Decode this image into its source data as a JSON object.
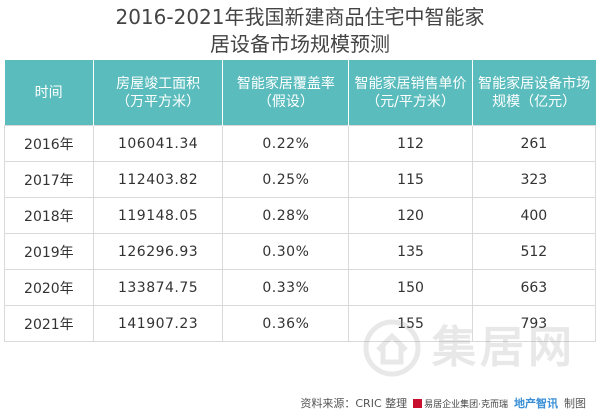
{
  "title": {
    "line1": "2016-2021年我国新建商品住宅中智能家",
    "line2": "居设备市场规模预测"
  },
  "table": {
    "headers": [
      [
        "时间"
      ],
      [
        "房屋竣工面积",
        "（万平方米）"
      ],
      [
        "智能家居覆盖率",
        "（假设）"
      ],
      [
        "智能家居销售单价",
        "（元/平方米）"
      ],
      [
        "智能家居设备市场",
        "规模（亿元）"
      ]
    ],
    "rows": [
      [
        "2016年",
        "106041.34",
        "0.22%",
        "112",
        "261"
      ],
      [
        "2017年",
        "112403.82",
        "0.25%",
        "115",
        "323"
      ],
      [
        "2018年",
        "119148.05",
        "0.28%",
        "120",
        "400"
      ],
      [
        "2019年",
        "126296.93",
        "0.30%",
        "135",
        "512"
      ],
      [
        "2020年",
        "133874.75",
        "0.33%",
        "150",
        "663"
      ],
      [
        "2021年",
        "141907.23",
        "0.36%",
        "155",
        "793"
      ]
    ]
  },
  "watermark": {
    "text": "集居网",
    "icon": "house-icon"
  },
  "footer": {
    "source": "资料来源：CRIC 整理",
    "org": "易居企业集团·克而瑞",
    "brand": "地产智讯",
    "made": "制图"
  },
  "colors": {
    "header_bg": "#5bbcbd",
    "border": "#d9d9d9"
  }
}
